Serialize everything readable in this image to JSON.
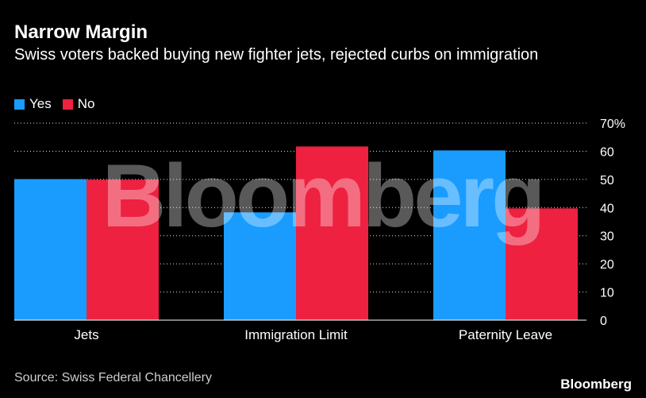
{
  "header": {
    "title": "Narrow Margin",
    "subtitle": "Swiss voters backed buying new fighter jets, rejected curbs on immigration"
  },
  "legend": [
    {
      "label": "Yes",
      "color": "#1a9cff"
    },
    {
      "label": "No",
      "color": "#ee2140"
    }
  ],
  "watermark": "Bloomberg",
  "footer": {
    "source": "Source: Swiss Federal Chancellery",
    "brand": "Bloomberg"
  },
  "chart_data": {
    "type": "bar",
    "title": "Narrow Margin",
    "subtitle": "Swiss voters backed buying new fighter jets, rejected curbs on immigration",
    "categories": [
      "Jets",
      "Immigration Limit",
      "Paternity Leave"
    ],
    "series": [
      {
        "name": "Yes",
        "color": "#1a9cff",
        "values": [
          50.1,
          38.3,
          60.3
        ]
      },
      {
        "name": "No",
        "color": "#ee2140",
        "values": [
          49.9,
          61.7,
          39.7
        ]
      }
    ],
    "ylim": [
      0,
      70
    ],
    "yticks": [
      0,
      10,
      20,
      30,
      40,
      50,
      60,
      70
    ],
    "ytick_labels": [
      "0",
      "10",
      "20",
      "30",
      "40",
      "50",
      "60",
      "70%"
    ],
    "xlabel": "",
    "ylabel": "",
    "grid": true,
    "legend_position": "top-left"
  }
}
